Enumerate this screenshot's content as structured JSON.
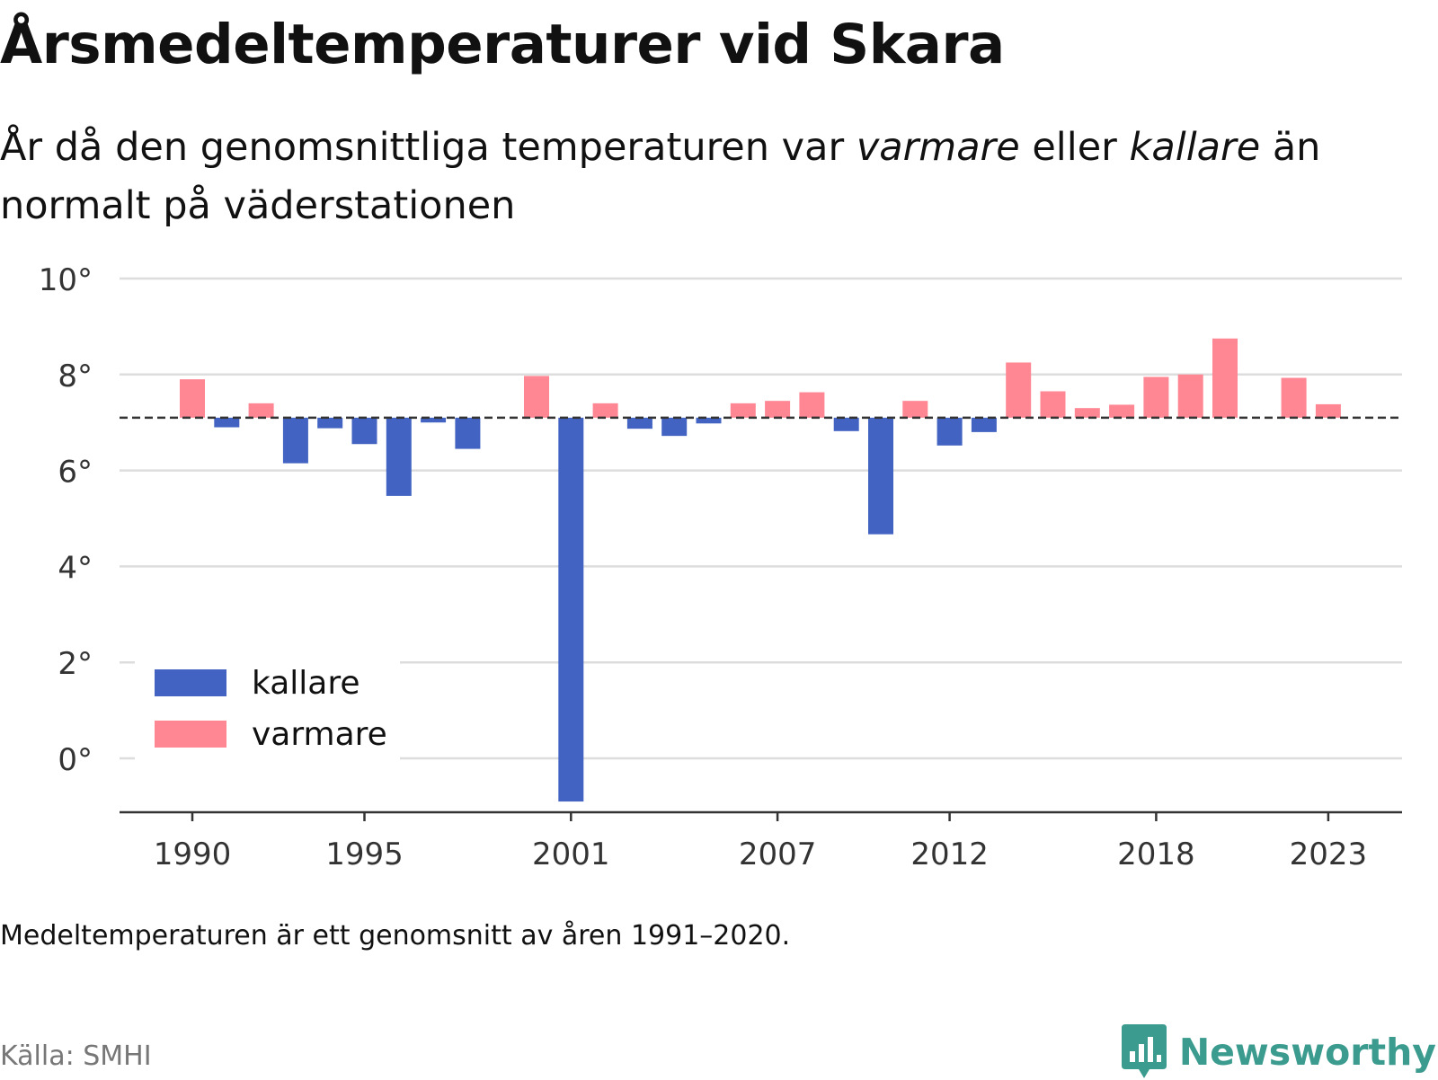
{
  "title": "Årsmedeltemperaturer vid Skara",
  "subtitle": {
    "part1": "År då den genomsnittliga temperaturen var ",
    "em1": "varmare",
    "part2": " eller ",
    "em2": "kallare",
    "part3": " än normalt på väderstationen"
  },
  "footnote": "Medeltemperaturen är ett genomsnitt av åren 1991–2020.",
  "source": "Källa: SMHI",
  "brand": {
    "name": "Newsworthy",
    "icon": "newsworthy-logo-icon"
  },
  "colors": {
    "colder": "#4263c2",
    "warmer": "#ff8794",
    "reference": "#333333",
    "grid": "#dddddd"
  },
  "chart_data": {
    "type": "bar",
    "reference": 7.1,
    "x": [
      1990,
      1991,
      1992,
      1993,
      1994,
      1995,
      1996,
      1997,
      1998,
      1999,
      2000,
      2001,
      2002,
      2003,
      2004,
      2005,
      2006,
      2007,
      2008,
      2009,
      2010,
      2011,
      2012,
      2013,
      2014,
      2015,
      2016,
      2017,
      2018,
      2019,
      2020,
      2021,
      2022,
      2023
    ],
    "values": [
      7.9,
      6.9,
      7.4,
      6.15,
      6.88,
      6.55,
      5.47,
      7.0,
      6.45,
      null,
      7.97,
      -0.9,
      7.4,
      6.87,
      6.72,
      6.98,
      7.4,
      7.45,
      7.63,
      6.82,
      4.67,
      7.45,
      6.52,
      6.8,
      8.25,
      7.65,
      7.3,
      7.37,
      7.95,
      8.0,
      8.75,
      null,
      7.93,
      7.38
    ],
    "xticks": [
      "1990",
      "1995",
      "2001",
      "2007",
      "2012",
      "2018",
      "2023"
    ],
    "yticks": [
      "0°",
      "2°",
      "4°",
      "6°",
      "8°",
      "10°"
    ],
    "ylim": [
      -1.15,
      10
    ],
    "grid": true,
    "legend": {
      "position": "bottom-left",
      "items": [
        {
          "label": "kallare"
        },
        {
          "label": "varmare"
        }
      ]
    }
  }
}
